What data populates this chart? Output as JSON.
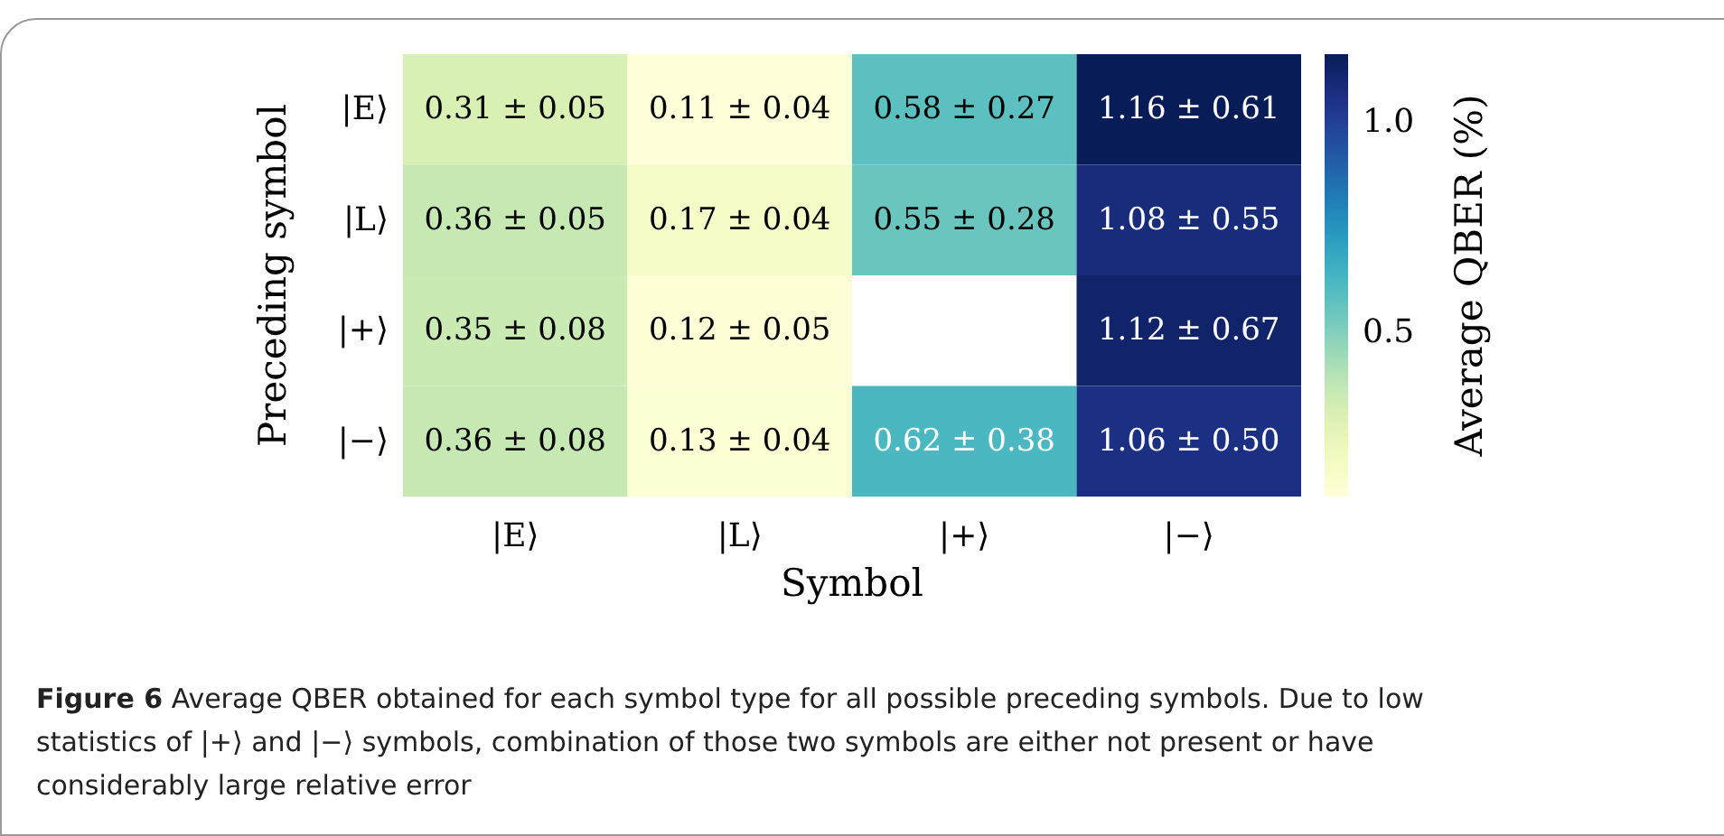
{
  "chart_data": {
    "type": "heatmap",
    "xlabel": "Symbol",
    "ylabel": "Preceding symbol",
    "clabel": "Average QBER (%)",
    "categories": [
      "|E⟩",
      "|L⟩",
      "|+⟩",
      "|−⟩"
    ],
    "y_categories": [
      "|E⟩",
      "|L⟩",
      "|+⟩",
      "|−⟩"
    ],
    "cells": [
      [
        0.31,
        0.11,
        0.58,
        1.16
      ],
      [
        0.36,
        0.17,
        0.55,
        1.08
      ],
      [
        0.35,
        0.12,
        null,
        1.12
      ],
      [
        0.36,
        0.13,
        0.62,
        1.06
      ]
    ],
    "cell_labels": [
      [
        "0.31 ± 0.05",
        "0.11 ± 0.04",
        "0.58 ± 0.27",
        "1.16 ± 0.61"
      ],
      [
        "0.36 ± 0.05",
        "0.17 ± 0.04",
        "0.55 ± 0.28",
        "1.08 ± 0.55"
      ],
      [
        "0.35 ± 0.08",
        "0.12 ± 0.05",
        null,
        "1.12 ± 0.67"
      ],
      [
        "0.36 ± 0.08",
        "0.13 ± 0.04",
        "0.62 ± 0.38",
        "1.06 ± 0.50"
      ]
    ],
    "clim": [
      0.11,
      1.16
    ],
    "cticks": [
      0.5,
      {
        "value": 1,
        "label": "1.0"
      }
    ],
    "annotations": [
      "Figure 6  Average QBER obtained for each symbol type for all possible preceding symbols. Due to low statistics of |+⟩ and |−⟩ symbols, combination of those two symbols are either not present or have considerably large relative error"
    ]
  }
}
